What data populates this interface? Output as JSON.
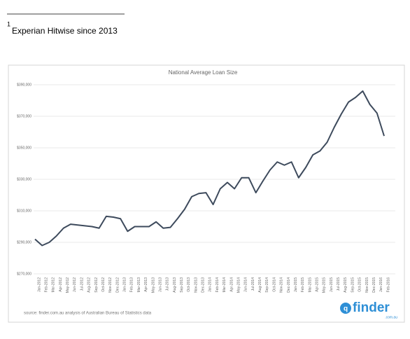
{
  "footnote": {
    "marker": "1",
    "text": "Experian Hitwise since 2013"
  },
  "logo": {
    "text": "finder",
    "sub": ".com.au"
  },
  "chart_data": {
    "type": "line",
    "title": "National Average Loan Size",
    "source": "source: finder.com.au analysis of Australian Bureau of Statistics data",
    "categories": [
      "Jan-2012",
      "Feb-2012",
      "Mar-2012",
      "Apr-2012",
      "May-2012",
      "Jun-2012",
      "Jul-2012",
      "Aug-2012",
      "Sep-2012",
      "Oct-2012",
      "Nov-2012",
      "Dec-2012",
      "Jan-2013",
      "Feb-2013",
      "Mar-2013",
      "Apr-2013",
      "May-2013",
      "Jun-2013",
      "Jul-2013",
      "Aug-2013",
      "Sep-2013",
      "Oct-2013",
      "Nov-2013",
      "Dec-2013",
      "Jan-2014",
      "Feb-2014",
      "Mar-2014",
      "Apr-2014",
      "May-2014",
      "Jun-2014",
      "Jul-2014",
      "Aug-2014",
      "Sep-2014",
      "Oct-2014",
      "Nov-2014",
      "Dec-2014",
      "Jan-2015",
      "Feb-2015",
      "Mar-2015",
      "Apr-2015",
      "May-2015",
      "Jun-2015",
      "Jul-2015",
      "Aug-2015",
      "Sep-2015",
      "Oct-2015",
      "Nov-2015",
      "Dec-2015",
      "Jan-2016",
      "Feb-2016"
    ],
    "series": [
      {
        "color": "#3d4a5c",
        "values": [
          292000,
          288000,
          290000,
          294000,
          299000,
          301500,
          301000,
          300500,
          300000,
          299000,
          306500,
          306000,
          305000,
          297000,
          300000,
          300000,
          300000,
          303000,
          299000,
          299500,
          305000,
          311000,
          319000,
          321000,
          321500,
          314000,
          324000,
          328000,
          324000,
          331000,
          331000,
          321500,
          329000,
          336000,
          341000,
          339000,
          341000,
          331000,
          337500,
          345500,
          348000,
          353500,
          363000,
          371500,
          379000,
          382000,
          386000,
          377500,
          372000,
          357500
        ]
      }
    ],
    "ylim": [
      270000,
      390000
    ],
    "yticks": [
      {
        "value": 270000,
        "label": "$270,000"
      },
      {
        "value": 290000,
        "label": "$290,000"
      },
      {
        "value": 310000,
        "label": "$310,000"
      },
      {
        "value": 330000,
        "label": "$330,000"
      },
      {
        "value": 350000,
        "label": "$350,000"
      },
      {
        "value": 370000,
        "label": "$370,000"
      },
      {
        "value": 390000,
        "label": "$390,000"
      }
    ],
    "grid": true
  }
}
